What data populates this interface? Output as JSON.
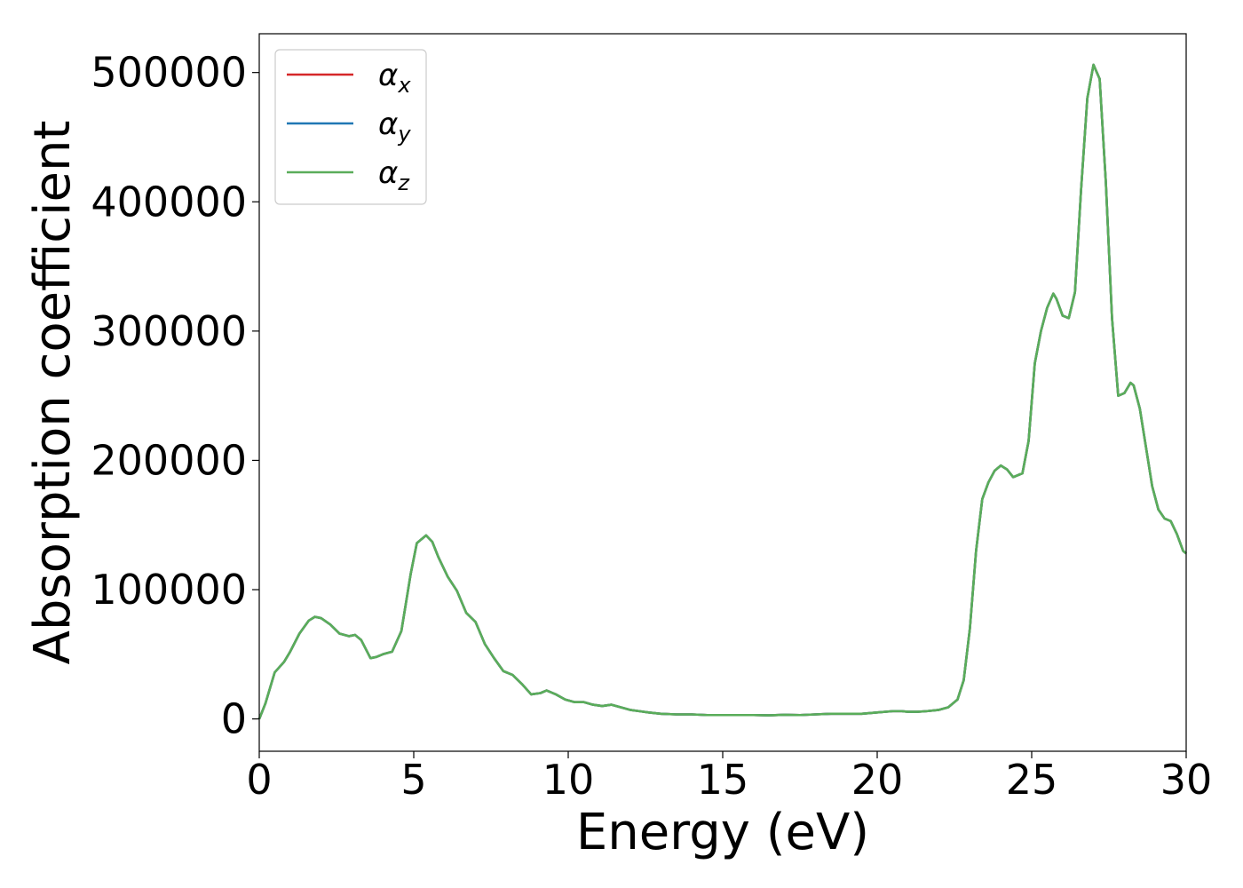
{
  "chart_data": {
    "type": "line",
    "title": "",
    "xlabel": "Energy (eV)",
    "ylabel": "Absorption coefficient",
    "xlim": [
      0,
      30
    ],
    "ylim": [
      -25000,
      530000
    ],
    "xticks": [
      0,
      5,
      10,
      15,
      20,
      25,
      30
    ],
    "xtick_labels": [
      "0",
      "5",
      "10",
      "15",
      "20",
      "25",
      "30"
    ],
    "yticks": [
      0,
      100000,
      200000,
      300000,
      400000,
      500000
    ],
    "ytick_labels": [
      "0",
      "100000",
      "200000",
      "300000",
      "400000",
      "500000"
    ],
    "grid": false,
    "legend_position": "top-left",
    "x": [
      0,
      0.2,
      0.5,
      0.8,
      1.0,
      1.3,
      1.6,
      1.8,
      2.0,
      2.3,
      2.6,
      2.9,
      3.1,
      3.3,
      3.6,
      3.8,
      4.0,
      4.3,
      4.6,
      4.9,
      5.1,
      5.4,
      5.6,
      5.8,
      6.1,
      6.4,
      6.7,
      7.0,
      7.3,
      7.6,
      7.9,
      8.2,
      8.5,
      8.8,
      9.1,
      9.3,
      9.6,
      9.9,
      10.2,
      10.5,
      10.8,
      11.1,
      11.4,
      11.7,
      12.0,
      12.3,
      12.6,
      13.0,
      13.5,
      14.0,
      14.5,
      15.0,
      15.5,
      16.0,
      16.5,
      17.0,
      17.5,
      18.0,
      18.5,
      19.0,
      19.5,
      20.0,
      20.5,
      20.8,
      21.0,
      21.3,
      21.6,
      22.0,
      22.3,
      22.6,
      22.8,
      23.0,
      23.2,
      23.4,
      23.6,
      23.8,
      24.0,
      24.2,
      24.4,
      24.7,
      24.9,
      25.1,
      25.3,
      25.5,
      25.7,
      25.8,
      26.0,
      26.2,
      26.4,
      26.6,
      26.8,
      27.0,
      27.2,
      27.4,
      27.6,
      27.8,
      28.0,
      28.2,
      28.3,
      28.5,
      28.7,
      28.9,
      29.1,
      29.3,
      29.5,
      29.7,
      29.9,
      30.0
    ],
    "series": [
      {
        "name": "αx",
        "color": "#d62728",
        "values": [
          0,
          12000,
          36000,
          44000,
          52000,
          66000,
          76000,
          79000,
          78000,
          73000,
          66000,
          64000,
          65000,
          61000,
          47000,
          48000,
          50000,
          52000,
          68000,
          112000,
          136000,
          142000,
          137000,
          125000,
          110000,
          99000,
          82000,
          75000,
          58000,
          47000,
          37000,
          34000,
          27000,
          19000,
          20000,
          22000,
          19000,
          15000,
          13000,
          13000,
          11000,
          10000,
          11000,
          9000,
          7000,
          6000,
          5000,
          4000,
          3500,
          3500,
          3000,
          3000,
          3000,
          3000,
          2800,
          3200,
          3000,
          3500,
          4000,
          4000,
          4000,
          5000,
          6000,
          6000,
          5500,
          5500,
          6000,
          7000,
          9000,
          15000,
          30000,
          70000,
          130000,
          170000,
          183000,
          192000,
          196000,
          193000,
          187000,
          190000,
          215000,
          275000,
          300000,
          318000,
          329000,
          325000,
          312000,
          310000,
          330000,
          410000,
          480000,
          506000,
          495000,
          415000,
          310000,
          250000,
          252000,
          260000,
          258000,
          240000,
          210000,
          180000,
          162000,
          155000,
          153000,
          143000,
          130000,
          128000
        ]
      },
      {
        "name": "αy",
        "color": "#1f77b4",
        "values": [
          0,
          12000,
          36000,
          44000,
          52000,
          66000,
          76000,
          79000,
          78000,
          73000,
          66000,
          64000,
          65000,
          61000,
          47000,
          48000,
          50000,
          52000,
          68000,
          112000,
          136000,
          142000,
          137000,
          125000,
          110000,
          99000,
          82000,
          75000,
          58000,
          47000,
          37000,
          34000,
          27000,
          19000,
          20000,
          22000,
          19000,
          15000,
          13000,
          13000,
          11000,
          10000,
          11000,
          9000,
          7000,
          6000,
          5000,
          4000,
          3500,
          3500,
          3000,
          3000,
          3000,
          3000,
          2800,
          3200,
          3000,
          3500,
          4000,
          4000,
          4000,
          5000,
          6000,
          6000,
          5500,
          5500,
          6000,
          7000,
          9000,
          15000,
          30000,
          70000,
          130000,
          170000,
          183000,
          192000,
          196000,
          193000,
          187000,
          190000,
          215000,
          275000,
          300000,
          318000,
          329000,
          325000,
          312000,
          310000,
          330000,
          410000,
          480000,
          506000,
          495000,
          415000,
          310000,
          250000,
          252000,
          260000,
          258000,
          240000,
          210000,
          180000,
          162000,
          155000,
          153000,
          143000,
          130000,
          128000
        ]
      },
      {
        "name": "αz",
        "color": "#5aad5a",
        "values": [
          0,
          12000,
          36000,
          44000,
          52000,
          66000,
          76000,
          79000,
          78000,
          73000,
          66000,
          64000,
          65000,
          61000,
          47000,
          48000,
          50000,
          52000,
          68000,
          112000,
          136000,
          142000,
          137000,
          125000,
          110000,
          99000,
          82000,
          75000,
          58000,
          47000,
          37000,
          34000,
          27000,
          19000,
          20000,
          22000,
          19000,
          15000,
          13000,
          13000,
          11000,
          10000,
          11000,
          9000,
          7000,
          6000,
          5000,
          4000,
          3500,
          3500,
          3000,
          3000,
          3000,
          3000,
          2800,
          3200,
          3000,
          3500,
          4000,
          4000,
          4000,
          5000,
          6000,
          6000,
          5500,
          5500,
          6000,
          7000,
          9000,
          15000,
          30000,
          70000,
          130000,
          170000,
          183000,
          192000,
          196000,
          193000,
          187000,
          190000,
          215000,
          275000,
          300000,
          318000,
          329000,
          325000,
          312000,
          310000,
          330000,
          410000,
          480000,
          506000,
          495000,
          415000,
          310000,
          250000,
          252000,
          260000,
          258000,
          240000,
          210000,
          180000,
          162000,
          155000,
          153000,
          143000,
          130000,
          128000
        ]
      }
    ]
  },
  "legend": {
    "items": [
      {
        "symbol": "α",
        "sub": "x",
        "color": "#d62728"
      },
      {
        "symbol": "α",
        "sub": "y",
        "color": "#1f77b4"
      },
      {
        "symbol": "α",
        "sub": "z",
        "color": "#5aad5a"
      }
    ]
  }
}
